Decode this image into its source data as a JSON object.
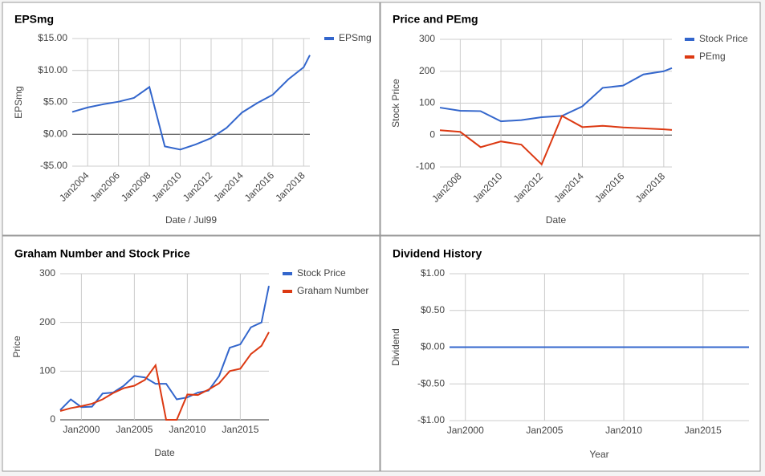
{
  "chart_data": [
    {
      "type": "line",
      "title": "EPSmg",
      "x_label": "Date / Jul99",
      "y_label": "EPSmg",
      "legend": "right",
      "grid": true,
      "x": [
        2003,
        2004,
        2005,
        2006,
        2007,
        2008,
        2009,
        2010,
        2011,
        2012,
        2013,
        2014,
        2015,
        2016,
        2017,
        2018,
        2018.4
      ],
      "series": [
        {
          "name": "EPSmg",
          "color": "#3366cc",
          "values": [
            3.5,
            4.2,
            4.7,
            5.1,
            5.7,
            7.4,
            -1.9,
            -2.4,
            -1.6,
            -0.6,
            1.0,
            3.4,
            4.9,
            6.2,
            8.6,
            10.5,
            12.4
          ]
        }
      ],
      "xlim": [
        2003,
        2018.4
      ],
      "xticks": [
        {
          "value": 2004,
          "label": "Jan2004"
        },
        {
          "value": 2006,
          "label": "Jan2006"
        },
        {
          "value": 2008,
          "label": "Jan2008"
        },
        {
          "value": 2010,
          "label": "Jan2010"
        },
        {
          "value": 2012,
          "label": "Jan2012"
        },
        {
          "value": 2014,
          "label": "Jan2014"
        },
        {
          "value": 2016,
          "label": "Jan2016"
        },
        {
          "value": 2018,
          "label": "Jan2018"
        }
      ],
      "ylim": [
        -5,
        15
      ],
      "yticks": [
        {
          "value": 15,
          "label": "$15.00"
        },
        {
          "value": 10,
          "label": "$10.00"
        },
        {
          "value": 5,
          "label": "$5.00"
        },
        {
          "value": 0,
          "label": "$0.00"
        },
        {
          "value": -5,
          "label": "-$5.00"
        }
      ]
    },
    {
      "type": "line",
      "title": "Price and PEmg",
      "x_label": "Date",
      "y_label": "Stock Price",
      "legend": "right",
      "grid": true,
      "x": [
        2007,
        2008,
        2009,
        2010,
        2011,
        2012,
        2013,
        2014,
        2015,
        2016,
        2017,
        2018,
        2018.4
      ],
      "series": [
        {
          "name": "Stock Price",
          "color": "#3366cc",
          "values": [
            86,
            76,
            75,
            43,
            47,
            56,
            60,
            90,
            148,
            155,
            190,
            200,
            210
          ]
        },
        {
          "name": "PEmg",
          "color": "#dc3912",
          "values": [
            15,
            10,
            -38,
            -20,
            -30,
            -92,
            60,
            25,
            29,
            24,
            21,
            18,
            16
          ]
        }
      ],
      "xlim": [
        2007,
        2018.4
      ],
      "xticks": [
        {
          "value": 2008,
          "label": "Jan2008"
        },
        {
          "value": 2010,
          "label": "Jan2010"
        },
        {
          "value": 2012,
          "label": "Jan2012"
        },
        {
          "value": 2014,
          "label": "Jan2014"
        },
        {
          "value": 2016,
          "label": "Jan2016"
        },
        {
          "value": 2018,
          "label": "Jan2018"
        }
      ],
      "ylim": [
        -100,
        300
      ],
      "yticks": [
        300,
        200,
        100,
        0,
        -100
      ]
    },
    {
      "type": "line",
      "title": "Graham Number and Stock Price",
      "x_label": "Date",
      "y_label": "Price",
      "legend": "right",
      "grid": true,
      "x": [
        1998,
        1999,
        2000,
        2001,
        2002,
        2003,
        2004,
        2005,
        2006,
        2007,
        2008,
        2009,
        2010,
        2011,
        2012,
        2013,
        2014,
        2015,
        2016,
        2017,
        2017.7
      ],
      "series": [
        {
          "name": "Stock Price",
          "color": "#3366cc",
          "values": [
            20,
            42,
            26,
            27,
            54,
            56,
            70,
            90,
            87,
            74,
            74,
            42,
            46,
            56,
            60,
            90,
            148,
            155,
            190,
            200,
            275
          ]
        },
        {
          "name": "Graham Number",
          "color": "#dc3912",
          "values": [
            18,
            24,
            28,
            33,
            42,
            55,
            65,
            70,
            82,
            112,
            0,
            0,
            52,
            51,
            62,
            75,
            100,
            105,
            135,
            152,
            180
          ]
        }
      ],
      "xlim": [
        1998,
        2017.7
      ],
      "xticks": [
        {
          "value": 2000,
          "label": "Jan2000"
        },
        {
          "value": 2005,
          "label": "Jan2005"
        },
        {
          "value": 2010,
          "label": "Jan2010"
        },
        {
          "value": 2015,
          "label": "Jan2015"
        }
      ],
      "ylim": [
        0,
        300
      ],
      "yticks": [
        300,
        200,
        100,
        0
      ]
    },
    {
      "type": "line",
      "title": "Dividend History",
      "x_label": "Year",
      "y_label": "Dividend",
      "grid": true,
      "x": [
        1999,
        2005,
        2010,
        2017.9
      ],
      "values": [
        0,
        0,
        0,
        0
      ],
      "color": "#3366cc",
      "xlim": [
        1999,
        2017.9
      ],
      "xticks": [
        {
          "value": 2000,
          "label": "Jan2000"
        },
        {
          "value": 2005,
          "label": "Jan2005"
        },
        {
          "value": 2010,
          "label": "Jan2010"
        },
        {
          "value": 2015,
          "label": "Jan2015"
        }
      ],
      "ylim": [
        -1,
        1
      ],
      "yticks": [
        {
          "value": 1,
          "label": "$1.00"
        },
        {
          "value": 0.5,
          "label": "$0.50"
        },
        {
          "value": 0,
          "label": "$0.00"
        },
        {
          "value": -0.5,
          "label": "-$0.50"
        },
        {
          "value": -1,
          "label": "-$1.00"
        }
      ]
    }
  ]
}
